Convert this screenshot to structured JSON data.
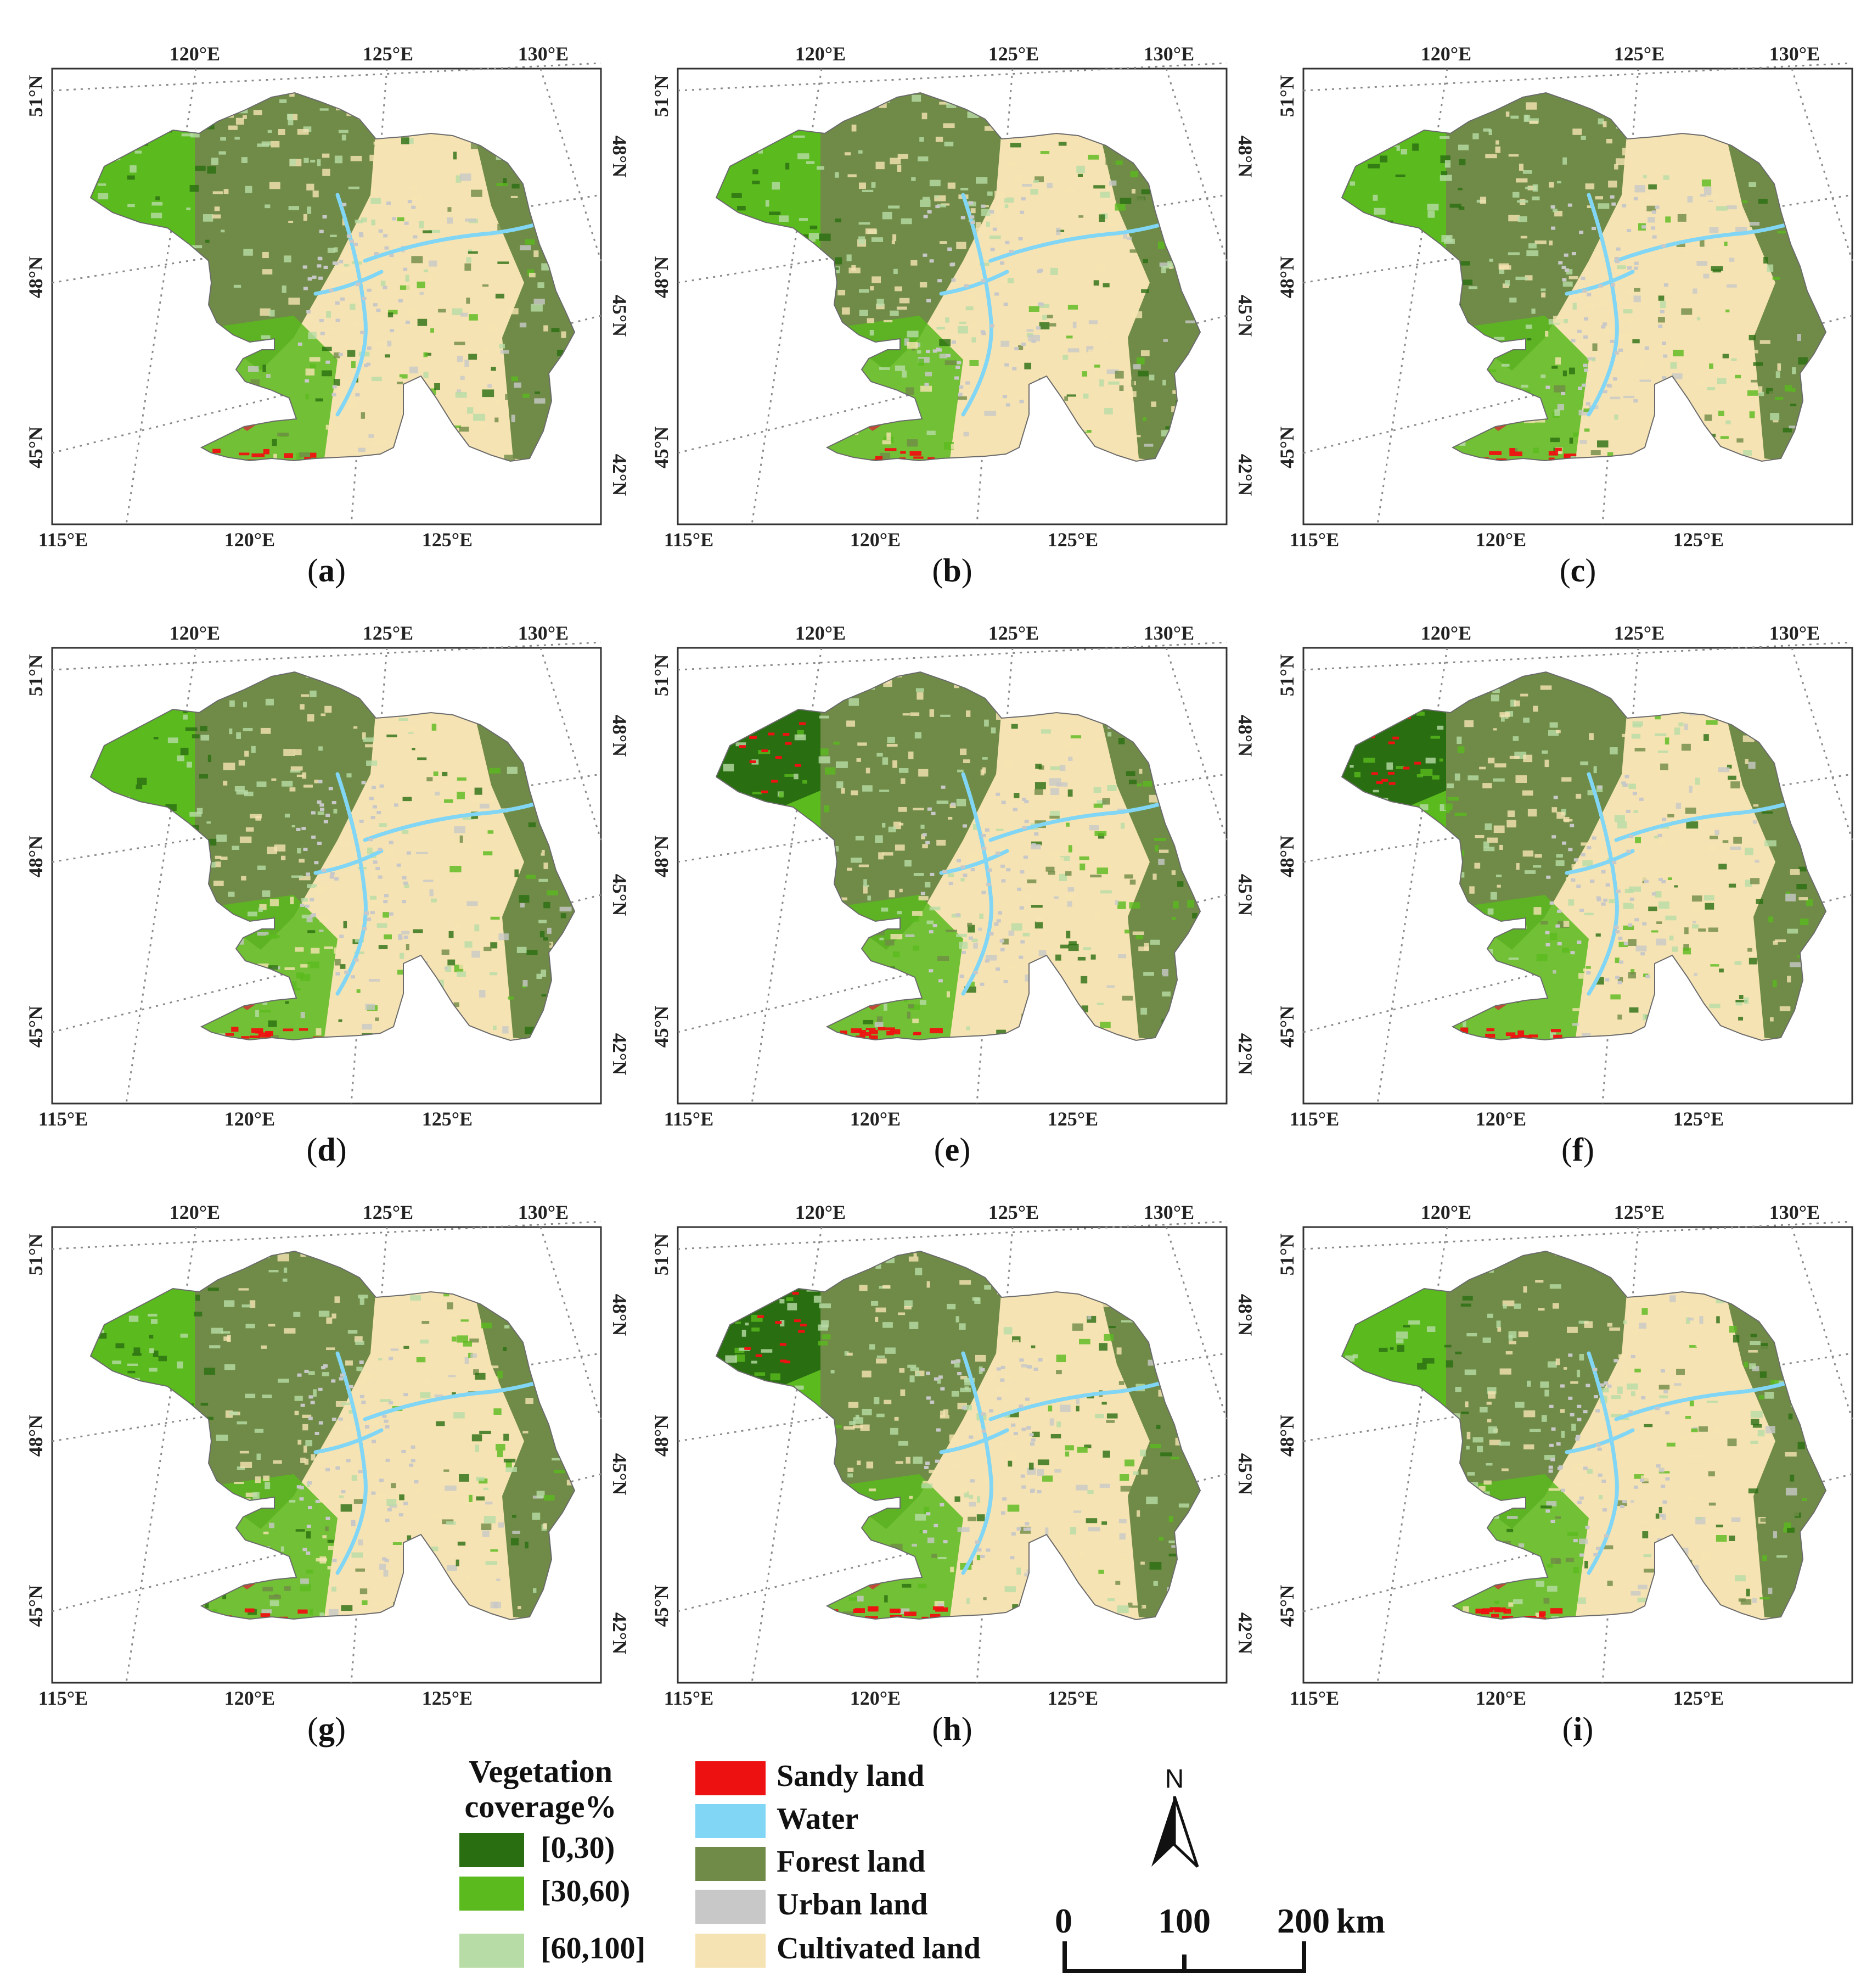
{
  "figure": {
    "panels": [
      {
        "id": "a",
        "caption": "a"
      },
      {
        "id": "b",
        "caption": "b"
      },
      {
        "id": "c",
        "caption": "c"
      },
      {
        "id": "d",
        "caption": "d"
      },
      {
        "id": "e",
        "caption": "e"
      },
      {
        "id": "f",
        "caption": "f"
      },
      {
        "id": "g",
        "caption": "g"
      },
      {
        "id": "h",
        "caption": "h"
      },
      {
        "id": "i",
        "caption": "i"
      }
    ],
    "graticule_labels": {
      "top": [
        "120°E",
        "125°E",
        "130°E"
      ],
      "bottom": [
        "115°E",
        "120°E",
        "125°E"
      ],
      "left": [
        "51°N",
        "48°N",
        "45°N"
      ],
      "right": [
        "48°N",
        "45°N",
        "42°N"
      ]
    }
  },
  "legend": {
    "vegetation_title_line1": "Vegetation",
    "vegetation_title_line2": "coverage%",
    "vegetation_classes": [
      {
        "label": "[0,30)",
        "color": "#2a6e12"
      },
      {
        "label": "[30,60)",
        "color": "#5aba1e"
      },
      {
        "label": "[60,100]",
        "color": "#b8dca6"
      }
    ],
    "land_classes": [
      {
        "label": "Sandy land",
        "color": "#ee1111"
      },
      {
        "label": "Water",
        "color": "#80d6f4"
      },
      {
        "label": "Forest land",
        "color": "#6f8b47"
      },
      {
        "label": "Urban land",
        "color": "#c8c8c8"
      },
      {
        "label": "Cultivated land",
        "color": "#f6e3b3"
      }
    ]
  },
  "north_arrow": {
    "label": "N"
  },
  "scale_bar": {
    "ticks": [
      "0",
      "100",
      "200"
    ],
    "unit": "km"
  }
}
